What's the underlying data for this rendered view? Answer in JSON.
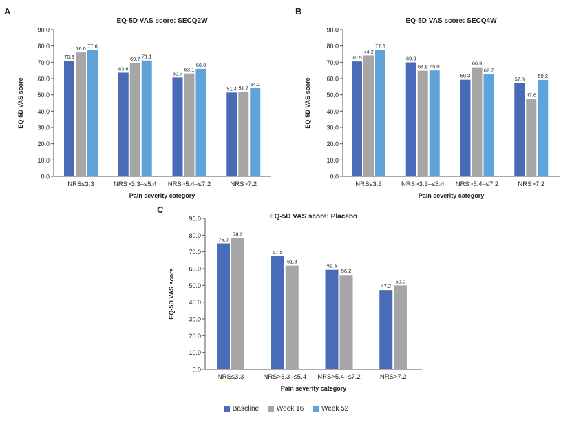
{
  "panels": [
    {
      "letter": "A"
    },
    {
      "letter": "B"
    },
    {
      "letter": "C"
    }
  ],
  "colors": {
    "Baseline": "#4a6bb8",
    "Week 16": "#a6a6a6",
    "Week 52": "#5fa3db",
    "axis": "#555555",
    "text": "#222222"
  },
  "legend": {
    "items": [
      {
        "label": "Baseline",
        "color": "#4a6bb8"
      },
      {
        "label": "Week 16",
        "color": "#a6a6a6"
      },
      {
        "label": "Week 52",
        "color": "#5fa3db"
      }
    ]
  },
  "chart_data": [
    {
      "type": "bar",
      "title": "EQ-5D VAS score: SECQ2W",
      "xlabel": "Pain severity category",
      "ylabel": "EQ-5D VAS score",
      "ylim": [
        0,
        90
      ],
      "yticks": [
        "0.0",
        "10.0",
        "20.0",
        "30.0",
        "40.0",
        "50.0",
        "60.0",
        "70.0",
        "80.0",
        "90.0"
      ],
      "categories": [
        "NRS≤3.3",
        "NRS>3.3–≤5.4",
        "NRS>5.4–≤7.2",
        "NRS>7.2"
      ],
      "series": [
        {
          "name": "Baseline",
          "values": [
            70.9,
            63.6,
            60.7,
            51.4
          ],
          "labels": [
            "70.9",
            "63.6",
            "60.7",
            "51.4"
          ]
        },
        {
          "name": "Week 16",
          "values": [
            76.0,
            69.7,
            63.1,
            51.7
          ],
          "labels": [
            "76.0",
            "69.7",
            "63.1",
            "51.7"
          ]
        },
        {
          "name": "Week 52",
          "values": [
            77.6,
            71.1,
            66.0,
            54.1
          ],
          "labels": [
            "77.6",
            "71.1",
            "66.0",
            "54.1"
          ]
        }
      ],
      "grid": false
    },
    {
      "type": "bar",
      "title": "EQ-5D VAS score: SECQ4W",
      "xlabel": "Pain severity category",
      "ylabel": "EQ-5D VAS score",
      "ylim": [
        0,
        90
      ],
      "yticks": [
        "0.0",
        "10.0",
        "20.0",
        "30.0",
        "40.0",
        "50.0",
        "60.0",
        "70.0",
        "80.0",
        "90.0"
      ],
      "categories": [
        "NRS≤3.3",
        "NRS>3.3–≤5.4",
        "NRS>5.4–≤7.2",
        "NRS>7.2"
      ],
      "series": [
        {
          "name": "Baseline",
          "values": [
            70.5,
            69.9,
            59.3,
            57.3
          ],
          "labels": [
            "70.5",
            "69.9",
            "59.3",
            "57.3"
          ]
        },
        {
          "name": "Week 16",
          "values": [
            74.2,
            64.8,
            66.9,
            47.6
          ],
          "labels": [
            "74.2",
            "64.8",
            "66.9",
            "47.6"
          ]
        },
        {
          "name": "Week 52",
          "values": [
            77.6,
            65.0,
            62.7,
            59.2
          ],
          "labels": [
            "77.6",
            "65.0",
            "62.7",
            "59.2"
          ]
        }
      ],
      "grid": false
    },
    {
      "type": "bar",
      "title": "EQ-5D VAS score: Placebo",
      "xlabel": "Pain severity category",
      "ylabel": "EQ-5D VAS score",
      "ylim": [
        0,
        90
      ],
      "yticks": [
        "0.0",
        "10.0",
        "20.0",
        "30.0",
        "40.0",
        "50.0",
        "60.0",
        "70.0",
        "80.0",
        "90.0"
      ],
      "categories": [
        "NRS≤3.3",
        "NRS>3.3–≤5.4",
        "NRS>5.4–≤7.2",
        "NRS>7.2"
      ],
      "series": [
        {
          "name": "Baseline",
          "values": [
            75.0,
            67.5,
            59.3,
            47.2
          ],
          "labels": [
            "75.0",
            "67.5",
            "59.3",
            "47.2"
          ]
        },
        {
          "name": "Week 16",
          "values": [
            78.2,
            61.8,
            56.2,
            50.0
          ],
          "labels": [
            "78.2",
            "61.8",
            "56.2",
            "50.0"
          ]
        }
      ],
      "grid": false
    }
  ]
}
